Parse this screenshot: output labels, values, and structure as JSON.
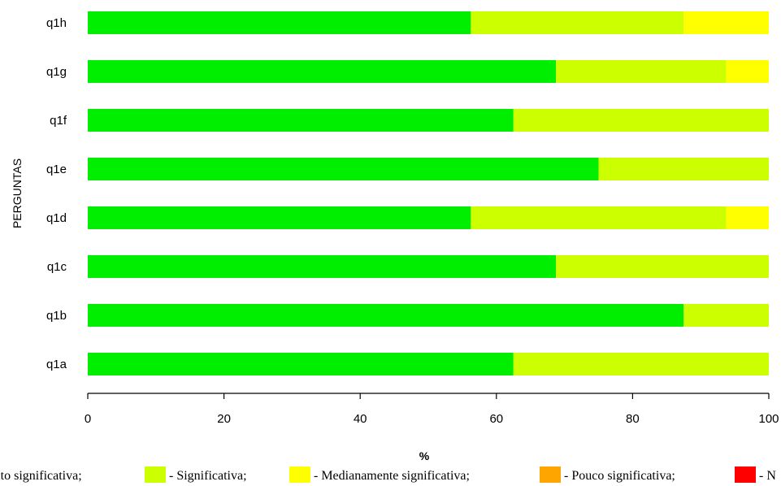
{
  "chart_data": {
    "type": "bar",
    "orientation": "horizontal",
    "stacked": true,
    "categories": [
      "q1a",
      "q1b",
      "q1c",
      "q1d",
      "q1e",
      "q1f",
      "q1g",
      "q1h"
    ],
    "series": [
      {
        "name": "Muito significativa",
        "color": "#00ee00",
        "values": [
          62.5,
          87.5,
          68.75,
          56.25,
          75,
          62.5,
          68.75,
          56.25
        ]
      },
      {
        "name": "Significativa",
        "color": "#ccff00",
        "values": [
          37.5,
          12.5,
          31.25,
          37.5,
          25,
          37.5,
          25,
          31.25
        ]
      },
      {
        "name": "Medianamente significativa",
        "color": "#ffff00",
        "values": [
          0,
          0,
          0,
          6.25,
          0,
          0,
          6.25,
          12.5
        ]
      },
      {
        "name": "Pouco significativa",
        "color": "#ffa500",
        "values": [
          0,
          0,
          0,
          0,
          0,
          0,
          0,
          0
        ]
      },
      {
        "name": "N",
        "color": "#ff0000",
        "values": [
          0,
          0,
          0,
          0,
          0,
          0,
          0,
          0
        ]
      }
    ],
    "xlabel": "%",
    "ylabel": "PERGUNTAS",
    "xlim": [
      0,
      100
    ],
    "xticks": [
      "0",
      "20",
      "40",
      "60",
      "80",
      "100"
    ],
    "legend": {
      "placement": "bottom",
      "items": [
        {
          "prefix": "",
          "label": "Muito significativa;",
          "color": "#00ee00"
        },
        {
          "prefix": "- ",
          "label": "Significativa;",
          "color": "#ccff00"
        },
        {
          "prefix": "- ",
          "label": "Medianamente significativa;",
          "color": "#ffff00"
        },
        {
          "prefix": "- ",
          "label": "Pouco significativa;",
          "color": "#ffa500"
        },
        {
          "prefix": "- ",
          "label": "N",
          "color": "#ff0000"
        }
      ]
    }
  }
}
